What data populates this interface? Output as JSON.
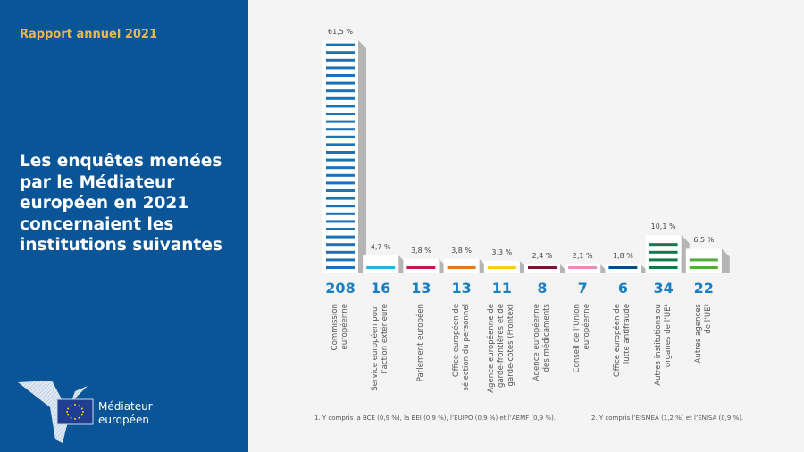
{
  "header": {
    "report_label": "Rapport annuel 2021"
  },
  "title": "Les enquêtes menées par le Médiateur européen en 2021 concernaient les institutions suivantes",
  "logo": {
    "line1": "Médiateur",
    "line2": "européen"
  },
  "footnotes": [
    "1.   Y compris la BCE (0,9 %), la BEI (0,9 %), l’EUIPO (0,9 %) et l’AEMF (0,9 %).",
    "2.   Y compris l’EISMEA (1,2 %) et l’ENISA (0,9 %)."
  ],
  "chart_data": {
    "type": "bar",
    "title": "Les enquêtes menées par le Médiateur européen en 2021 concernaient les institutions suivantes",
    "xlabel": "",
    "ylabel": "",
    "ylim": [
      0,
      61.5
    ],
    "grid": false,
    "categories": [
      [
        "Commission",
        "européenne"
      ],
      [
        "Service européen pour",
        "l’action extérieure"
      ],
      [
        "Parlement européen"
      ],
      [
        "Office européen de",
        "sélection du personnel"
      ],
      [
        "Agence européenne de",
        "garde-frontières et de",
        "garde-côtes (Frontex)"
      ],
      [
        "Agence européenne",
        "des médicaments"
      ],
      [
        "Conseil de l’Union",
        "européenne"
      ],
      [
        "Office européen de",
        "lutte antifraude"
      ],
      [
        "Autres institutions ou",
        "organes de l’UE¹"
      ],
      [
        "Autres agences",
        "de l’UE²"
      ]
    ],
    "counts": [
      208,
      16,
      13,
      13,
      11,
      8,
      7,
      6,
      34,
      22
    ],
    "percent_values": [
      61.5,
      4.7,
      3.8,
      3.8,
      3.3,
      2.4,
      2.1,
      1.8,
      10.1,
      6.5
    ],
    "percent_labels": [
      "61,5 %",
      "4,7 %",
      "3,8 %",
      "3,8 %",
      "3,3 %",
      "2,4 %",
      "2,1 %",
      "1,8 %",
      "10,1 %",
      "6,5 %"
    ],
    "colors": [
      "#1a72b9",
      "#27b2e0",
      "#c8164f",
      "#e07a22",
      "#f5cf1c",
      "#7a1733",
      "#e48fb5",
      "#0e4a8a",
      "#0f7a48",
      "#4fae3c"
    ]
  }
}
